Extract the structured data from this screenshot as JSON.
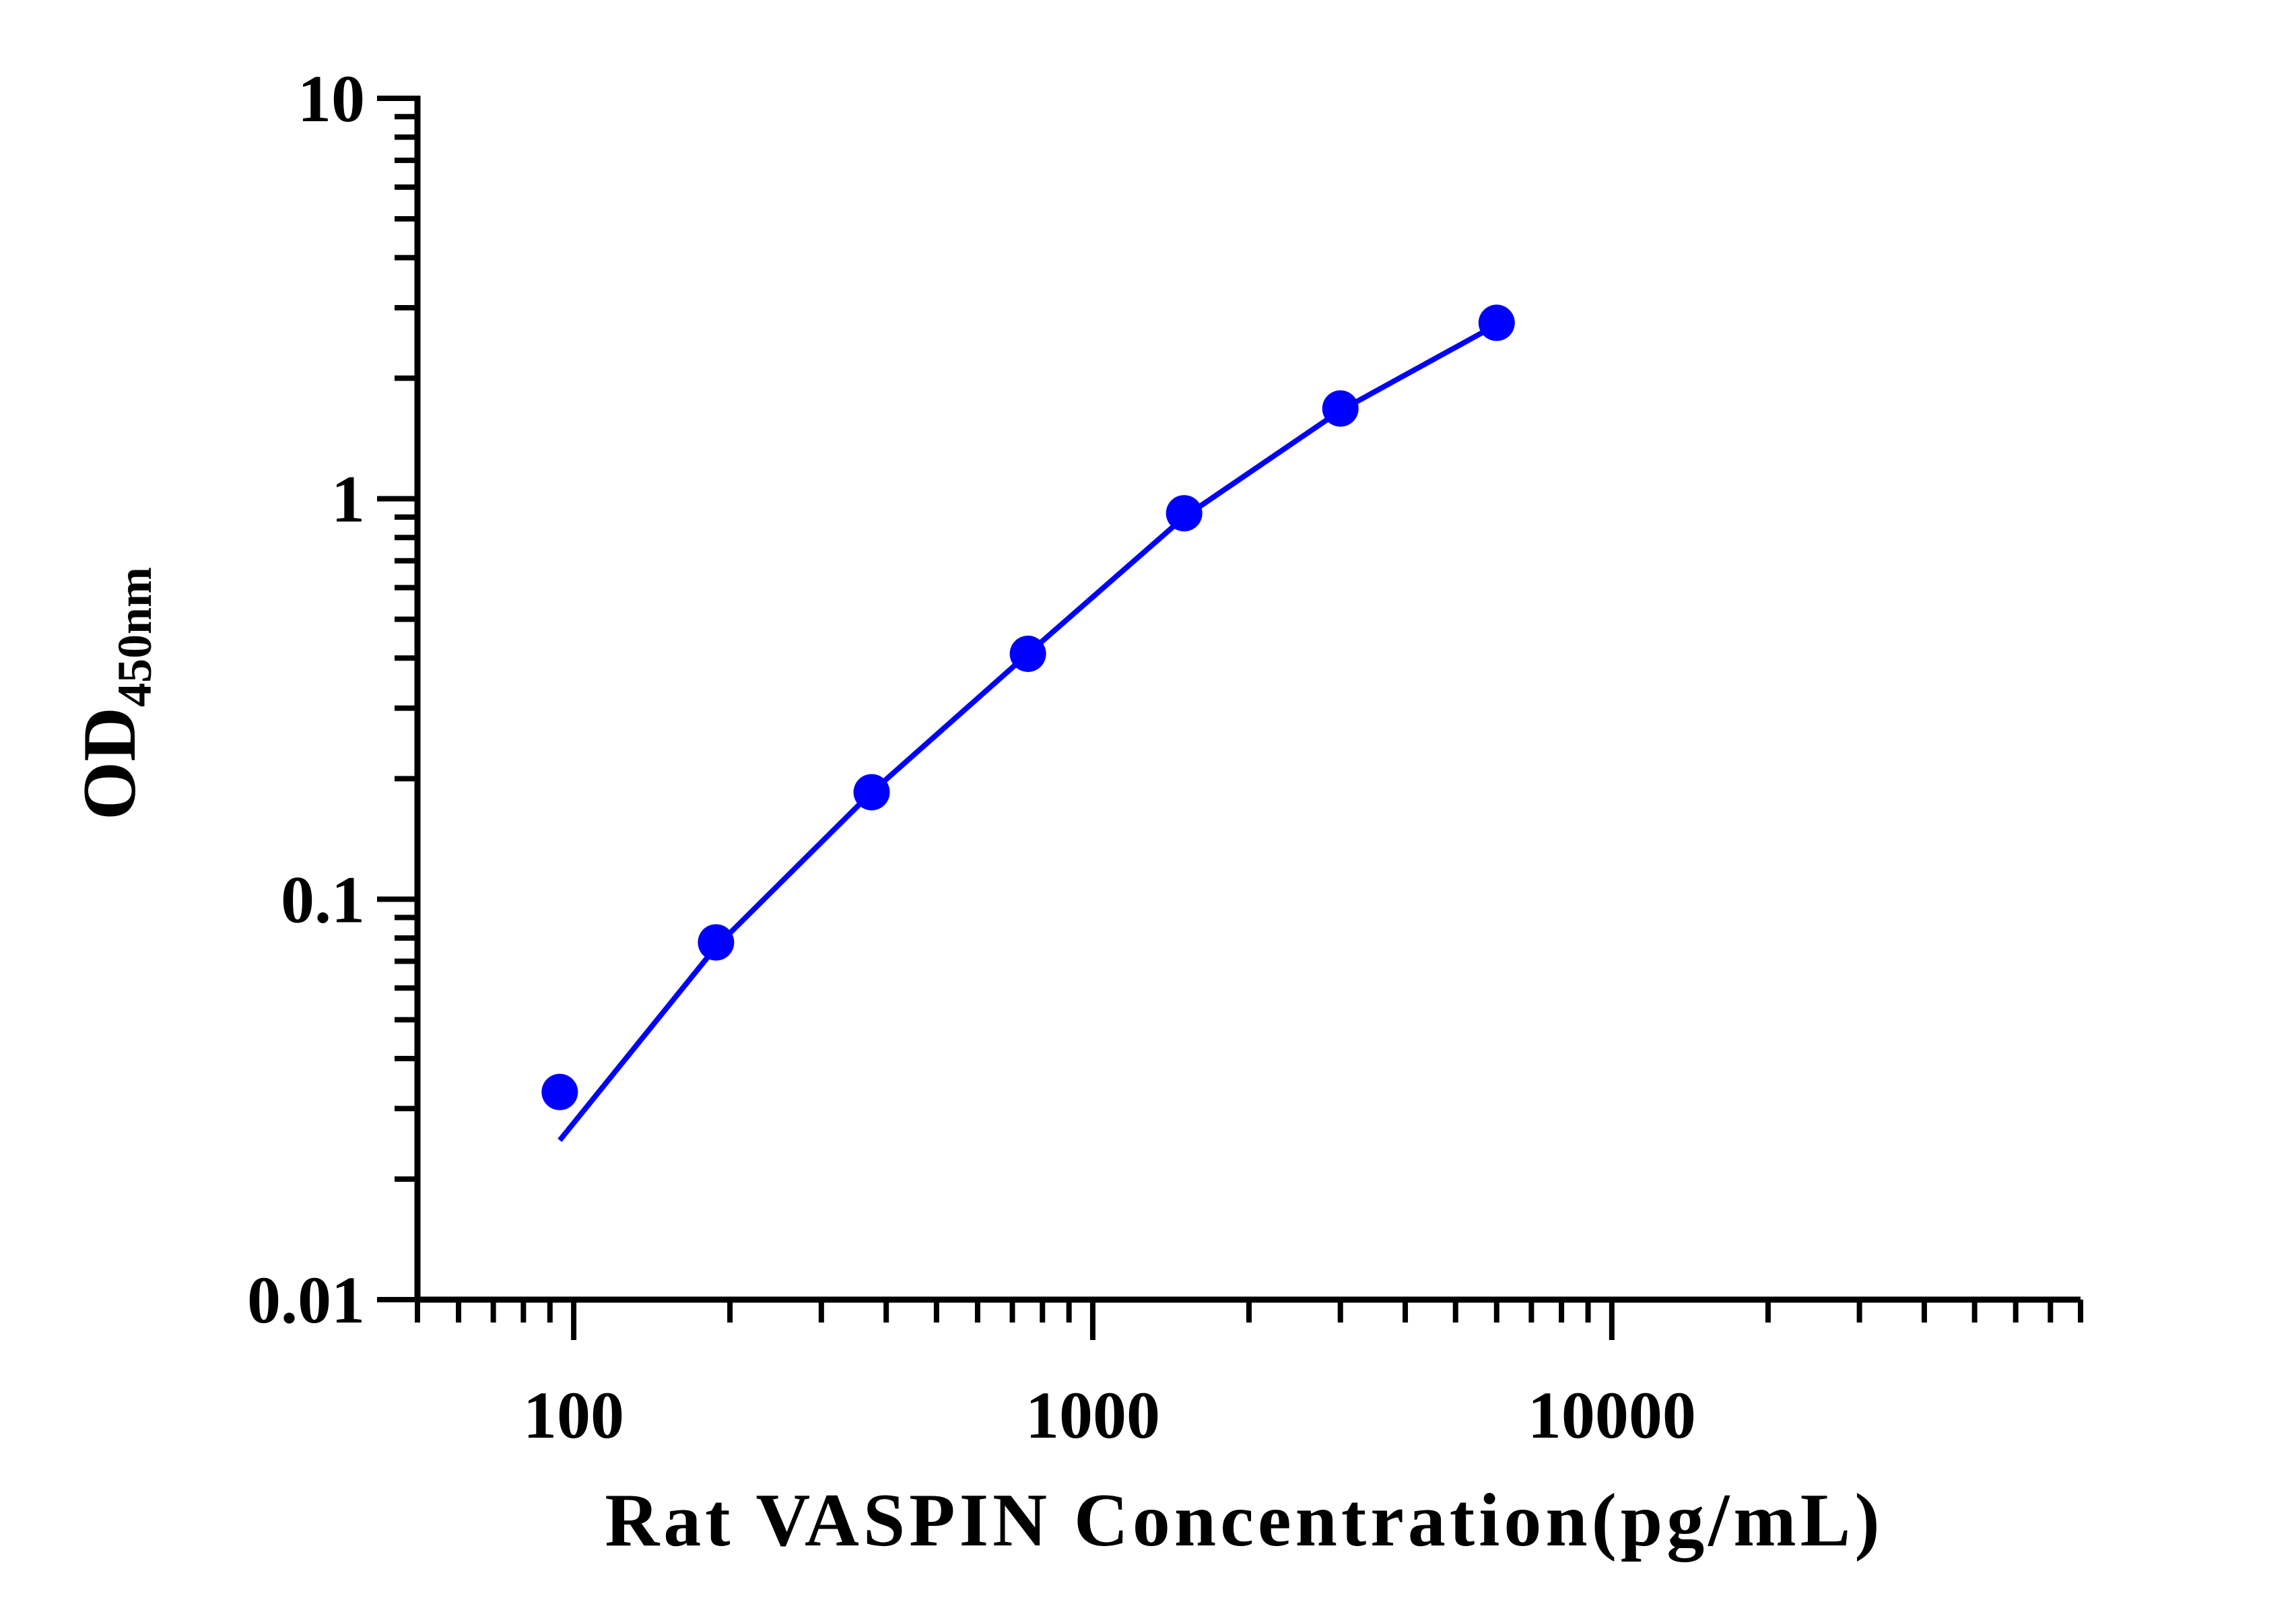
{
  "chart_data": {
    "type": "scatter",
    "xlabel": "Rat VASPIN Concentration(pg/mL)",
    "ylabel": "OD",
    "ylabel_subscript": "450nm",
    "xscale": "log",
    "yscale": "log",
    "xlim": [
      50,
      80000
    ],
    "ylim": [
      0.01,
      10
    ],
    "x_ticks": [
      100,
      1000,
      10000
    ],
    "x_tick_labels": [
      "100",
      "1000",
      "10000"
    ],
    "y_ticks": [
      0.01,
      0.1,
      1,
      10
    ],
    "y_tick_labels": [
      "0.01",
      "0.1",
      "1",
      "10"
    ],
    "grid": false,
    "series": [
      {
        "points": [
          {
            "x": 94,
            "y": 0.033
          },
          {
            "x": 188,
            "y": 0.078
          },
          {
            "x": 375,
            "y": 0.185
          },
          {
            "x": 750,
            "y": 0.41
          },
          {
            "x": 1500,
            "y": 0.92
          },
          {
            "x": 3000,
            "y": 1.68
          },
          {
            "x": 6000,
            "y": 2.75
          }
        ],
        "fit": [
          {
            "x": 94,
            "y": 0.025
          },
          {
            "x": 188,
            "y": 0.076
          },
          {
            "x": 375,
            "y": 0.185
          },
          {
            "x": 750,
            "y": 0.41
          },
          {
            "x": 1500,
            "y": 0.9
          },
          {
            "x": 3000,
            "y": 1.66
          },
          {
            "x": 6000,
            "y": 2.72
          }
        ]
      }
    ],
    "colors": {
      "series": "#0000ff",
      "axis": "#000000"
    }
  }
}
